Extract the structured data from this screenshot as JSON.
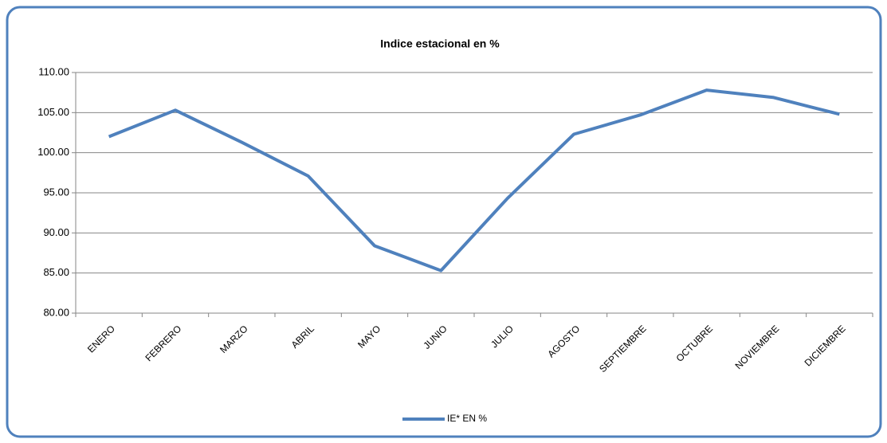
{
  "chart_data": {
    "type": "line",
    "title": "Indice estacional en %",
    "categories": [
      "ENERO",
      "FEBRERO",
      "MARZO",
      "ABRIL",
      "MAYO",
      "JUNIO",
      "JULIO",
      "AGOSTO",
      "SEPTIEMBRE",
      "OCTUBRE",
      "NOVIEMBRE",
      "DICIEMBRE"
    ],
    "series": [
      {
        "name": "IE* EN %",
        "color": "#4f81bd",
        "values": [
          102.0,
          105.3,
          101.3,
          97.1,
          88.4,
          85.3,
          94.3,
          102.3,
          104.7,
          107.8,
          106.9,
          104.8
        ]
      }
    ],
    "ylim": [
      80,
      110
    ],
    "yticks": [
      {
        "value": 80,
        "label": "80.00"
      },
      {
        "value": 85,
        "label": "85.00"
      },
      {
        "value": 90,
        "label": "90.00"
      },
      {
        "value": 95,
        "label": "95.00"
      },
      {
        "value": 100,
        "label": "100.00"
      },
      {
        "value": 105,
        "label": "105.00"
      },
      {
        "value": 110,
        "label": "110.00"
      }
    ],
    "grid": true,
    "legend": "bottom"
  }
}
